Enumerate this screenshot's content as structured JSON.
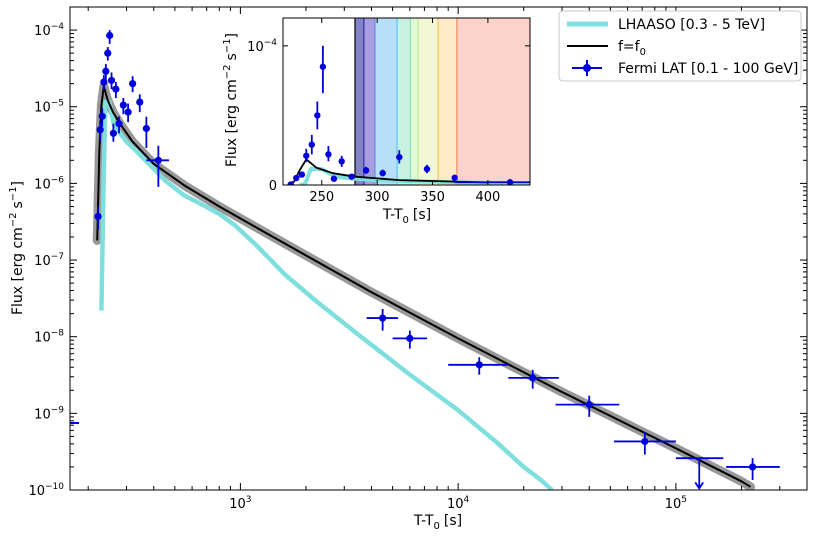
{
  "chart_data": {
    "type": "line",
    "main": {
      "xlabel": "T-T",
      "xlabel_sub": "0",
      "xlabel_unit": "[s]",
      "ylabel": "Flux [erg cm",
      "ylabel_exp": "−2",
      "ylabel_mid": "s",
      "ylabel_exp2": "−1",
      "ylabel_end": "]",
      "xscale": "log",
      "yscale": "log",
      "xlim": [
        165,
        400000
      ],
      "ylim": [
        1e-10,
        0.0002
      ],
      "xticks": [
        {
          "value": 1000,
          "base": "10",
          "exp": "3"
        },
        {
          "value": 10000,
          "base": "10",
          "exp": "4"
        },
        {
          "value": 100000,
          "base": "10",
          "exp": "5"
        }
      ],
      "yticks": [
        {
          "value": 1e-10,
          "base": "10",
          "exp": "−10"
        },
        {
          "value": 1e-09,
          "base": "10",
          "exp": "−9"
        },
        {
          "value": 1e-08,
          "base": "10",
          "exp": "−8"
        },
        {
          "value": 1e-07,
          "base": "10",
          "exp": "−7"
        },
        {
          "value": 1e-06,
          "base": "10",
          "exp": "−6"
        },
        {
          "value": 1e-05,
          "base": "10",
          "exp": "−5"
        },
        {
          "value": 0.0001,
          "base": "10",
          "exp": "−4"
        }
      ],
      "legend": {
        "placement": "top-right",
        "entries": [
          {
            "label": "LHAASO [0.3 - 5 TeV]",
            "kind": "thick-line",
            "color": "#7fdede"
          },
          {
            "label": "f=f",
            "label_sub": "0",
            "kind": "line",
            "color": "#000000"
          },
          {
            "label": "Fermi LAT [0.1 - 100 GeV]",
            "kind": "errorbar",
            "color": "#0000dd"
          }
        ]
      }
    },
    "series": [
      {
        "name": "LHAASO [0.3 - 5 TeV]",
        "color": "#7fdede",
        "x": [
          230,
          235,
          240,
          250,
          262,
          280,
          300,
          330,
          380,
          450,
          550,
          650,
          800,
          950,
          1200,
          1600,
          2200,
          3500,
          6000,
          10000,
          15000,
          20000,
          24000,
          27000
        ],
        "y": [
          2.2e-08,
          8e-07,
          1.15e-05,
          1.15e-05,
          6e-06,
          4.5e-06,
          3.5e-06,
          2.7e-06,
          1.8e-06,
          1.1e-06,
          7e-07,
          5.5e-07,
          4e-07,
          2.8e-07,
          1.5e-07,
          6.5e-08,
          3e-08,
          1.05e-08,
          3.2e-09,
          1.1e-09,
          4.2e-10,
          2e-10,
          1.35e-10,
          1e-10
        ]
      },
      {
        "name": "f=f0",
        "color": "#000000",
        "band_color": "#999999",
        "x": [
          220,
          225,
          230,
          236,
          245,
          260,
          280,
          320,
          400,
          550,
          800,
          1200,
          2000,
          4000,
          10000,
          30000,
          100000,
          200000,
          220000
        ],
        "y": [
          1.8e-07,
          2.5e-06,
          1.05e-05,
          1.85e-05,
          1.25e-05,
          8.5e-06,
          6e-06,
          3.5e-06,
          1.8e-06,
          9.5e-07,
          5e-07,
          2.6e-07,
          1.15e-07,
          3.8e-08,
          9.5e-09,
          1.9e-09,
          3.5e-10,
          1.3e-10,
          1.1e-10
        ]
      },
      {
        "name": "Fermi LAT [0.1 - 100 GeV]",
        "color": "#0000dd",
        "points": [
          {
            "x": 222,
            "y": 3.7e-07,
            "ylo": 2.5e-07,
            "yhi": 5e-07
          },
          {
            "x": 227,
            "y": 5e-06,
            "ylo": 3.6e-06,
            "yhi": 6.5e-06
          },
          {
            "x": 232,
            "y": 7.5e-06,
            "ylo": 5.5e-06,
            "yhi": 9.5e-06
          },
          {
            "x": 236,
            "y": 2.1e-05,
            "ylo": 1.65e-05,
            "yhi": 2.6e-05
          },
          {
            "x": 241,
            "y": 2.9e-05,
            "ylo": 2.2e-05,
            "yhi": 3.6e-05
          },
          {
            "x": 246,
            "y": 5e-05,
            "ylo": 4e-05,
            "yhi": 6e-05
          },
          {
            "x": 251,
            "y": 8.5e-05,
            "ylo": 6.6e-05,
            "yhi": 0.0001
          },
          {
            "x": 256,
            "y": 2.2e-05,
            "ylo": 1.7e-05,
            "yhi": 2.8e-05
          },
          {
            "x": 261,
            "y": 4.5e-06,
            "ylo": 3.5e-06,
            "yhi": 6e-06
          },
          {
            "x": 268,
            "y": 1.7e-05,
            "ylo": 1.3e-05,
            "yhi": 2.1e-05
          },
          {
            "x": 277,
            "y": 6e-06,
            "ylo": 4.5e-06,
            "yhi": 7.5e-06
          },
          {
            "x": 290,
            "y": 1.05e-05,
            "ylo": 8e-06,
            "yhi": 1.3e-05
          },
          {
            "x": 305,
            "y": 8.5e-06,
            "ylo": 6.3e-06,
            "yhi": 1.1e-05
          },
          {
            "x": 320,
            "y": 2e-05,
            "ylo": 1.55e-05,
            "yhi": 2.5e-05
          },
          {
            "x": 345,
            "y": 1.15e-05,
            "ylo": 8.5e-06,
            "yhi": 1.45e-05
          },
          {
            "x": 370,
            "y": 5.2e-06,
            "ylo": 2.9e-06,
            "yhi": 7.4e-06
          },
          {
            "x": 420,
            "y": 2e-06,
            "ylo": 9e-07,
            "yhi": 3.1e-06,
            "xlo": 370,
            "xhi": 470
          },
          {
            "x": 4500,
            "y": 1.75e-08,
            "ylo": 1.2e-08,
            "yhi": 2.3e-08,
            "xlo": 3800,
            "xhi": 5300
          },
          {
            "x": 6000,
            "y": 9.5e-09,
            "ylo": 7e-09,
            "yhi": 1.2e-08,
            "xlo": 5000,
            "xhi": 7200
          },
          {
            "x": 12500,
            "y": 4.3e-09,
            "ylo": 3.2e-09,
            "yhi": 5.4e-09,
            "xlo": 9000,
            "xhi": 17000
          },
          {
            "x": 22000,
            "y": 2.9e-09,
            "ylo": 2.1e-09,
            "yhi": 3.7e-09,
            "xlo": 17000,
            "xhi": 29000
          },
          {
            "x": 40000,
            "y": 1.3e-09,
            "ylo": 9e-10,
            "yhi": 1.7e-09,
            "xlo": 28000,
            "xhi": 55000
          },
          {
            "x": 72000,
            "y": 4.3e-10,
            "ylo": 2.9e-10,
            "yhi": 5.7e-10,
            "xlo": 52000,
            "xhi": 100000
          },
          {
            "x": 128000,
            "y": 2.6e-10,
            "ylo": 1.05e-10,
            "yhi": 2.6e-10,
            "xlo": 100000,
            "xhi": 165000,
            "upper_limit": true
          },
          {
            "x": 225000,
            "y": 2e-10,
            "ylo": 1.35e-10,
            "yhi": 2.6e-10,
            "xlo": 170000,
            "xhi": 300000
          }
        ]
      }
    ],
    "inset": {
      "xlabel": "T-T",
      "xlabel_sub": "0",
      "xlabel_unit": "[s]",
      "ylabel": "Flux [erg cm",
      "ylabel_exp": "−2",
      "ylabel_mid": "s",
      "ylabel_exp2": "−1",
      "ylabel_end": "]",
      "xscale": "linear",
      "yscale": "linear",
      "xlim": [
        215,
        438
      ],
      "ylim": [
        0,
        0.00012
      ],
      "xticks": [
        {
          "value": 250,
          "label": "250"
        },
        {
          "value": 300,
          "label": "300"
        },
        {
          "value": 350,
          "label": "350"
        },
        {
          "value": 400,
          "label": "400"
        }
      ],
      "yticks": [
        {
          "value": 0,
          "label": "0",
          "base": "",
          "exp": ""
        },
        {
          "value": 0.0001,
          "label": "",
          "base": "10",
          "exp": "−4"
        }
      ],
      "bands": [
        {
          "x0": 280,
          "x1": 288,
          "color": "#5a5ab4"
        },
        {
          "x0": 288,
          "x1": 298,
          "color": "#8a7ed6"
        },
        {
          "x0": 298,
          "x1": 318,
          "color": "#9fd4f5"
        },
        {
          "x0": 318,
          "x1": 330,
          "color": "#b5ecd8"
        },
        {
          "x0": 330,
          "x1": 337,
          "color": "#d4f5c8"
        },
        {
          "x0": 337,
          "x1": 355,
          "color": "#eef5c6"
        },
        {
          "x0": 355,
          "x1": 372,
          "color": "#fde3b6"
        },
        {
          "x0": 372,
          "x1": 440,
          "color": "#fbc4b8"
        }
      ],
      "band_edges": [
        {
          "x": 280,
          "color": "#000000"
        },
        {
          "x": 288,
          "color": "#2e2ea0"
        },
        {
          "x": 298,
          "color": "#6688dd"
        },
        {
          "x": 318,
          "color": "#5ec4f0"
        },
        {
          "x": 330,
          "color": "#8ee0bf"
        },
        {
          "x": 337,
          "color": "#c8e88e"
        },
        {
          "x": 355,
          "color": "#f6c35e"
        },
        {
          "x": 372,
          "color": "#ee8a66"
        }
      ]
    }
  }
}
